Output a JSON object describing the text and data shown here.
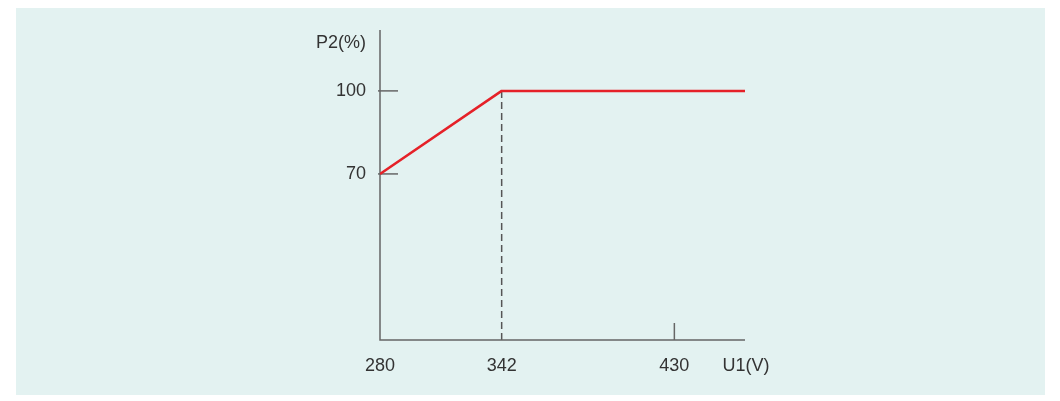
{
  "chart_data": {
    "type": "line",
    "xlabel": "U1(V)",
    "ylabel": "P2(%)",
    "xlim": [
      280,
      466
    ],
    "xticks": [
      280,
      342,
      430
    ],
    "ylim": [
      10,
      122
    ],
    "yticks": [
      70,
      100
    ],
    "marker": "none",
    "series": [
      {
        "x": [
          280,
          342,
          466
        ],
        "values": [
          70,
          100,
          100
        ],
        "color": "#e52128"
      }
    ],
    "ref_lines": [
      {
        "axis": "x",
        "value": 342,
        "color": "#555555",
        "line_style": "dashed"
      }
    ]
  }
}
